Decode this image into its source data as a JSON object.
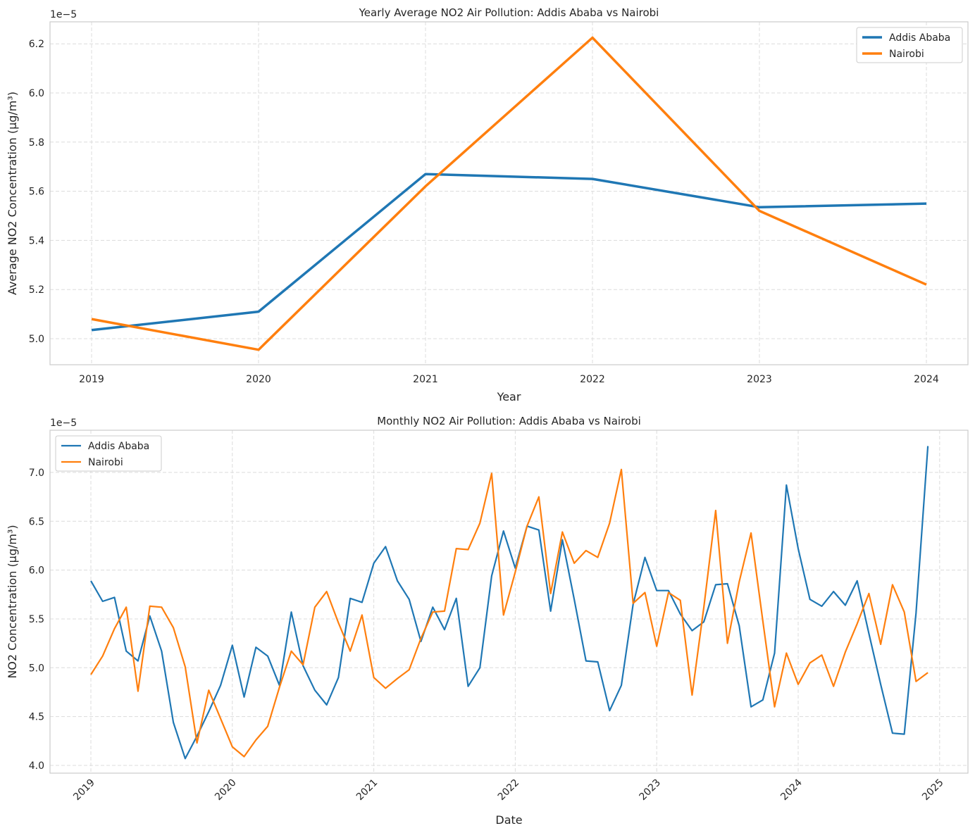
{
  "chart_data": [
    {
      "type": "line",
      "title": "Yearly Average NO2 Air Pollution: Addis Ababa vs Nairobi",
      "xlabel": "Year",
      "ylabel": "Average NO2 Concentration (µg/m³)",
      "offset_label": "1e−5",
      "x": [
        "2019",
        "2020",
        "2021",
        "2022",
        "2023",
        "2024"
      ],
      "xticks": [
        "2019",
        "2020",
        "2021",
        "2022",
        "2023",
        "2024"
      ],
      "yticks": [
        "5.0",
        "5.2",
        "5.4",
        "5.6",
        "5.8",
        "6.0",
        "6.2"
      ],
      "ylim": [
        4.89,
        6.29
      ],
      "grid": true,
      "legend": "top-right",
      "series": [
        {
          "name": "Addis Ababa",
          "color": "#1f77b4",
          "values": [
            5.035,
            5.11,
            5.67,
            5.65,
            5.535,
            5.55
          ]
        },
        {
          "name": "Nairobi",
          "color": "#ff7f0e",
          "values": [
            5.08,
            4.955,
            5.62,
            6.225,
            5.52,
            5.22
          ]
        }
      ]
    },
    {
      "type": "line",
      "title": "Monthly NO2 Air Pollution: Addis Ababa vs Nairobi",
      "xlabel": "Date",
      "ylabel": "NO2 Concentration (µg/m³)",
      "offset_label": "1e−5",
      "x_start": "2019-01",
      "x_end": "2024-12",
      "x_frequency": "monthly",
      "xticks": [
        "2019",
        "2020",
        "2021",
        "2022",
        "2023",
        "2024",
        "2025"
      ],
      "yticks": [
        "4.0",
        "4.5",
        "5.0",
        "5.5",
        "6.0",
        "6.5",
        "7.0"
      ],
      "ylim": [
        3.92,
        7.4
      ],
      "grid": true,
      "legend": "top-left",
      "series": [
        {
          "name": "Addis Ababa",
          "color": "#1f77b4",
          "values": [
            5.89,
            5.68,
            5.72,
            5.17,
            5.07,
            5.53,
            5.17,
            4.44,
            4.07,
            4.3,
            4.55,
            4.82,
            5.23,
            4.7,
            5.21,
            5.12,
            4.82,
            5.57,
            5.02,
            4.77,
            4.62,
            4.9,
            5.71,
            5.67,
            6.07,
            6.24,
            5.89,
            5.7,
            5.27,
            5.62,
            5.39,
            5.71,
            4.81,
            5.0,
            5.94,
            6.4,
            6.02,
            6.45,
            6.41,
            5.58,
            6.31,
            5.7,
            5.07,
            5.06,
            4.56,
            4.82,
            5.65,
            6.13,
            5.79,
            5.79,
            5.55,
            5.38,
            5.47,
            5.85,
            5.86,
            5.43,
            4.6,
            4.67,
            5.15,
            6.87,
            6.22,
            5.7,
            5.63,
            5.78,
            5.64,
            5.89,
            5.35,
            4.83,
            4.33,
            4.32,
            5.56,
            7.27
          ]
        },
        {
          "name": "Nairobi",
          "color": "#ff7f0e",
          "values": [
            4.93,
            5.12,
            5.4,
            5.62,
            4.76,
            5.63,
            5.62,
            5.41,
            5.01,
            4.23,
            4.77,
            4.48,
            4.19,
            4.09,
            4.26,
            4.4,
            4.8,
            5.17,
            5.03,
            5.62,
            5.78,
            5.46,
            5.17,
            5.54,
            4.9,
            4.79,
            4.89,
            4.98,
            5.3,
            5.57,
            5.58,
            6.22,
            6.21,
            6.48,
            6.99,
            5.54,
            5.98,
            6.45,
            6.75,
            5.76,
            6.39,
            6.07,
            6.2,
            6.13,
            6.48,
            7.03,
            5.66,
            5.77,
            5.22,
            5.77,
            5.69,
            4.72,
            5.62,
            6.61,
            5.25,
            5.88,
            6.38,
            5.48,
            4.6,
            5.15,
            4.83,
            5.05,
            5.13,
            4.81,
            5.16,
            5.45,
            5.76,
            5.24,
            5.85,
            5.57,
            4.86,
            4.95
          ]
        }
      ]
    }
  ]
}
